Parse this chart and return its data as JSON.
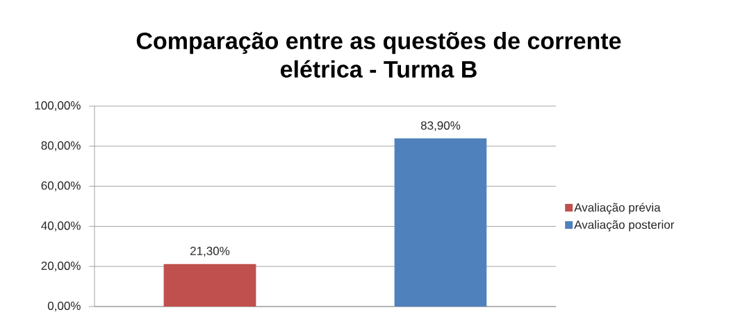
{
  "chart_data": {
    "type": "bar",
    "title": "Comparação entre as questões de corrente elétrica - Turma B",
    "categories": [
      null,
      null
    ],
    "series": [
      {
        "name": "Avaliação prévia",
        "color": "#c0504d",
        "values": [
          21.3,
          null
        ],
        "value_labels": [
          "21,30%",
          null
        ]
      },
      {
        "name": "Avaliação posterior",
        "color": "#4f81bd",
        "values": [
          null,
          83.9
        ],
        "value_labels": [
          null,
          "83,90%"
        ]
      }
    ],
    "ylim": [
      0,
      100
    ],
    "yticks": [
      {
        "value": 0,
        "label": "0,00%"
      },
      {
        "value": 20,
        "label": "20,00%"
      },
      {
        "value": 40,
        "label": "40,00%"
      },
      {
        "value": 60,
        "label": "60,00%"
      },
      {
        "value": 80,
        "label": "80,00%"
      },
      {
        "value": 100,
        "label": "100,00%"
      }
    ],
    "grid": "y",
    "legend": "right"
  }
}
